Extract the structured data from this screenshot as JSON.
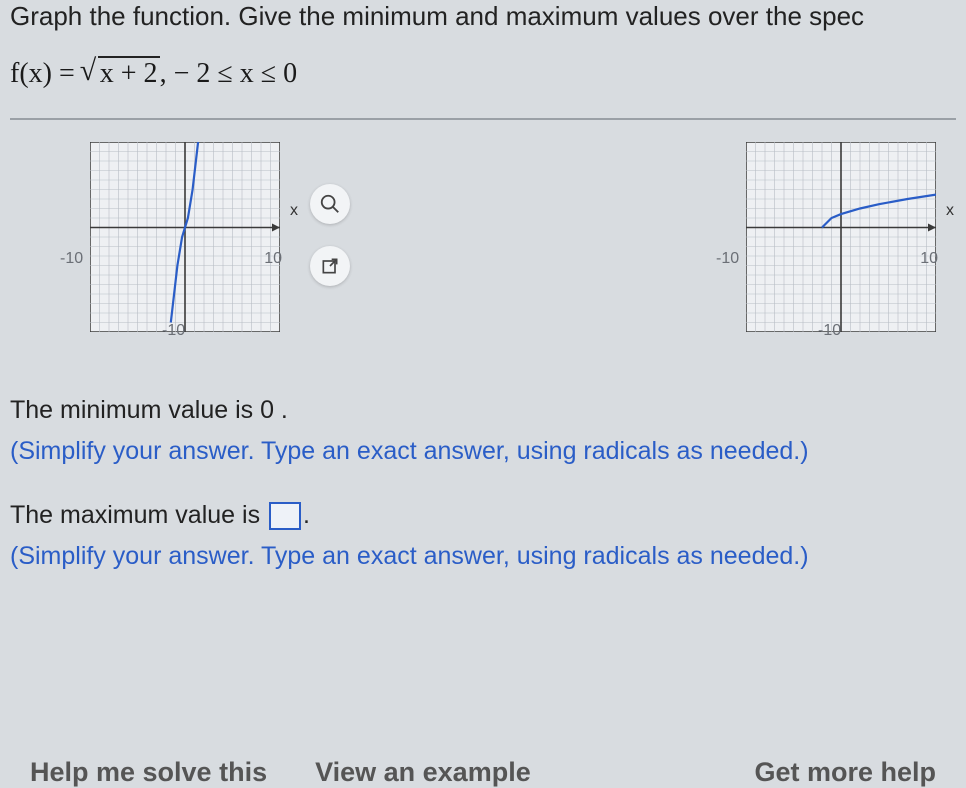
{
  "prompt": "Graph the function. Give the minimum and maximum values over the spec",
  "function": {
    "lhs": "f(x) = ",
    "radicand": "x + 2",
    "domain": ",  − 2 ≤ x ≤ 0"
  },
  "chart": {
    "type": "line",
    "size": 190,
    "grid_lines": 20,
    "background_color": "#eef0f3",
    "grid_color": "#b8bdc5",
    "axis_color": "#3a3a3a",
    "curve_color": "#2a5dc7",
    "curve_width": 2.2,
    "x_axis_label": "x",
    "xlim": [
      -10,
      10
    ],
    "ylim": [
      -10,
      10
    ],
    "tick_labels": {
      "left": "-10",
      "right": "10",
      "bottom": "-10"
    }
  },
  "chart_left_curve": {
    "description": "cubic-like curve passing through origin, steep",
    "points": [
      [
        -1.5,
        -10
      ],
      [
        -0.8,
        -4
      ],
      [
        -0.3,
        -1
      ],
      [
        0,
        0
      ],
      [
        0.3,
        1
      ],
      [
        0.8,
        4
      ],
      [
        1.5,
        10
      ]
    ]
  },
  "chart_right_curve": {
    "description": "sqrt(x+2) on [-2,10]",
    "points": [
      [
        -2,
        0
      ],
      [
        -1,
        1
      ],
      [
        0,
        1.414
      ],
      [
        2,
        2
      ],
      [
        4,
        2.449
      ],
      [
        7,
        3
      ],
      [
        10,
        3.464
      ]
    ]
  },
  "answers": {
    "min_line_prefix": "The minimum value is ",
    "min_value": "0",
    "min_line_suffix": " .",
    "hint": "(Simplify your answer. Type an exact answer, using radicals as needed.)",
    "max_line_prefix": "The maximum value is ",
    "max_line_suffix": "."
  },
  "bottom_links": {
    "help": "Help me solve this",
    "example": "View an example",
    "more": "Get more help"
  },
  "icons": {
    "zoom": "zoom-icon",
    "popout": "popout-icon"
  }
}
